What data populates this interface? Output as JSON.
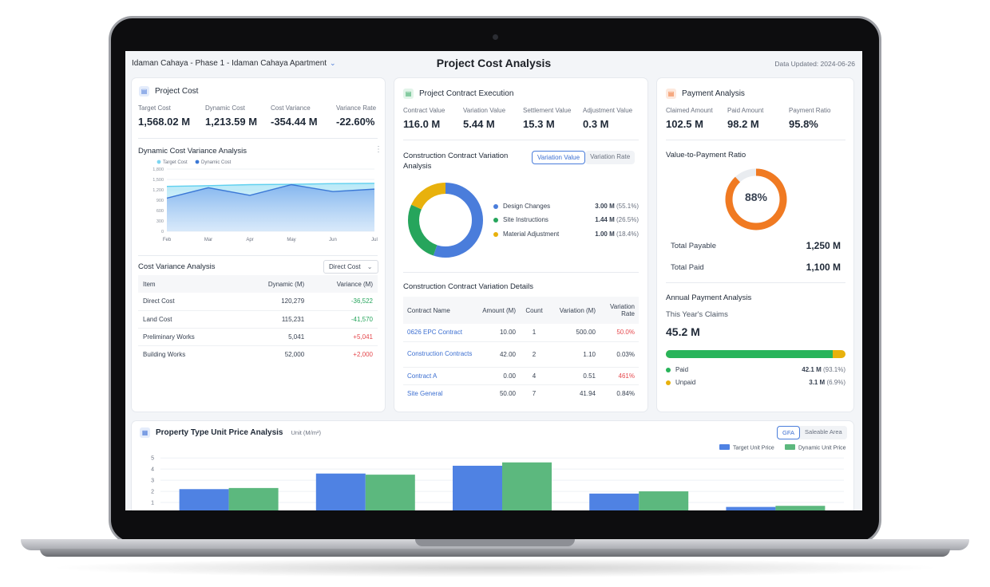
{
  "header": {
    "project_selector": "Idaman Cahaya - Phase 1 - Idaman Cahaya Apartment",
    "title": "Project Cost Analysis",
    "data_updated": "Data Updated: 2024-06-26"
  },
  "project_cost": {
    "title": "Project Cost",
    "kpis": [
      {
        "label": "Target Cost",
        "value": "1,568.02 M"
      },
      {
        "label": "Dynamic Cost",
        "value": "1,213.59 M"
      },
      {
        "label": "Cost Variance",
        "value": "-354.44 M"
      },
      {
        "label": "Variance Rate",
        "value": "-22.60%"
      }
    ],
    "variance_chart": {
      "title": "Dynamic Cost Variance Analysis",
      "more_icon": "more-vertical-icon",
      "legend": [
        "Target Cost",
        "Dynamic Cost"
      ]
    },
    "variance_table": {
      "title": "Cost Variance Analysis",
      "filter": "Direct Cost",
      "headers": [
        "Item",
        "Dynamic (M)",
        "Variance (M)"
      ],
      "rows": [
        [
          "Direct Cost",
          "120,279",
          "-36,522"
        ],
        [
          "Land Cost",
          "115,231",
          "-41,570"
        ],
        [
          "Preliminary Works",
          "5,041",
          "+5,041"
        ],
        [
          "Building Works",
          "52,000",
          "+2,000"
        ]
      ]
    }
  },
  "contract_execution": {
    "title": "Project Contract Execution",
    "kpis": [
      {
        "label": "Contract Value",
        "value": "116.0 M"
      },
      {
        "label": "Variation Value",
        "value": "5.44 M"
      },
      {
        "label": "Settlement Value",
        "value": "15.3 M"
      },
      {
        "label": "Adjustment Value",
        "value": "0.3 M"
      }
    ],
    "variation_title": "Construction Contract Variation Analysis",
    "toggle": [
      "Variation Value",
      "Variation Rate"
    ],
    "donut_legend": [
      {
        "label": "Design Changes",
        "value": "3.00 M",
        "pct": "(55.1%)"
      },
      {
        "label": "Site Instructions",
        "value": "1.44 M",
        "pct": "(26.5%)"
      },
      {
        "label": "Material Adjustment",
        "value": "1.00 M",
        "pct": "(18.4%)"
      }
    ],
    "details_title": "Construction Contract Variation Details",
    "details_headers": [
      "Contract Name",
      "Amount (M)",
      "Count",
      "Variation (M)",
      "Variation Rate"
    ],
    "details_rows": [
      [
        "0626 EPC Contract",
        "10.00",
        "1",
        "500.00",
        "50.0%"
      ],
      [
        "Construction Contracts",
        "42.00",
        "2",
        "1.10",
        "0.03%"
      ],
      [
        "Contract A",
        "0.00",
        "4",
        "0.51",
        "461%"
      ],
      [
        "Site General",
        "50.00",
        "7",
        "41.94",
        "0.84%"
      ]
    ]
  },
  "payment": {
    "title": "Payment Analysis",
    "kpis": [
      {
        "label": "Claimed Amount",
        "value": "102.5 M"
      },
      {
        "label": "Paid Amount",
        "value": "98.2 M"
      },
      {
        "label": "Payment Ratio",
        "value": "95.8%"
      }
    ],
    "ratio_title": "Value-to-Payment Ratio",
    "ratio_value": "88%",
    "ratio_fraction": 0.88,
    "total_payable_label": "Total Payable",
    "total_payable": "1,250 M",
    "total_paid_label": "Total Paid",
    "total_paid": "1,100 M",
    "annual_title": "Annual Payment Analysis",
    "claims_label": "This Year's Claims",
    "claims_value": "45.2 M",
    "paid_fraction": 0.931,
    "legend": [
      {
        "label": "Paid",
        "value": "42.1 M",
        "pct": "(93.1%)"
      },
      {
        "label": "Unpaid",
        "value": "3.1 M",
        "pct": "(6.9%)"
      }
    ]
  },
  "unit_price": {
    "title": "Property Type Unit Price Analysis",
    "unit": "Unit (M/m²)",
    "toggle": [
      "GFA",
      "Saleable Area"
    ],
    "legend": [
      "Target Unit Price",
      "Dynamic Unit Price"
    ]
  },
  "colors": {
    "blue": "#4a7ddb",
    "green": "#26a55c",
    "gold": "#e8b10c",
    "orange": "#f07a22",
    "red": "#e5484d",
    "bar_target": "#4f82e3",
    "bar_dynamic": "#5cb87e"
  },
  "chart_data": [
    {
      "type": "area",
      "title": "Dynamic Cost Variance Analysis",
      "categories": [
        "Feb",
        "Mar",
        "Apr",
        "May",
        "Jun",
        "Jul"
      ],
      "y_ticks": [
        "0",
        "300",
        "600",
        "900",
        "1,200",
        "1,500",
        "1,800"
      ],
      "ylim": [
        0,
        1800
      ],
      "series": [
        {
          "name": "Target Cost",
          "values": [
            1300,
            1320,
            1350,
            1360,
            1380,
            1390
          ]
        },
        {
          "name": "Dynamic Cost",
          "values": [
            960,
            1260,
            1040,
            1350,
            1150,
            1220
          ]
        }
      ],
      "legend_position": "top-left"
    },
    {
      "type": "pie",
      "title": "Construction Contract Variation Analysis",
      "labels": [
        "Design Changes",
        "Site Instructions",
        "Material Adjustment"
      ],
      "values": [
        3.0,
        1.44,
        1.0
      ]
    },
    {
      "type": "bar",
      "title": "Property Type Unit Price Analysis",
      "y_ticks": [
        "1",
        "2",
        "3",
        "4",
        "5"
      ],
      "ylim": [
        0,
        5.3
      ],
      "series": [
        {
          "name": "Target Unit Price",
          "values": [
            2.2,
            3.6,
            4.3,
            1.8,
            0.6
          ]
        },
        {
          "name": "Dynamic Unit Price",
          "values": [
            2.3,
            3.5,
            4.6,
            2.0,
            0.7
          ]
        }
      ],
      "legend_position": "top-right"
    }
  ]
}
